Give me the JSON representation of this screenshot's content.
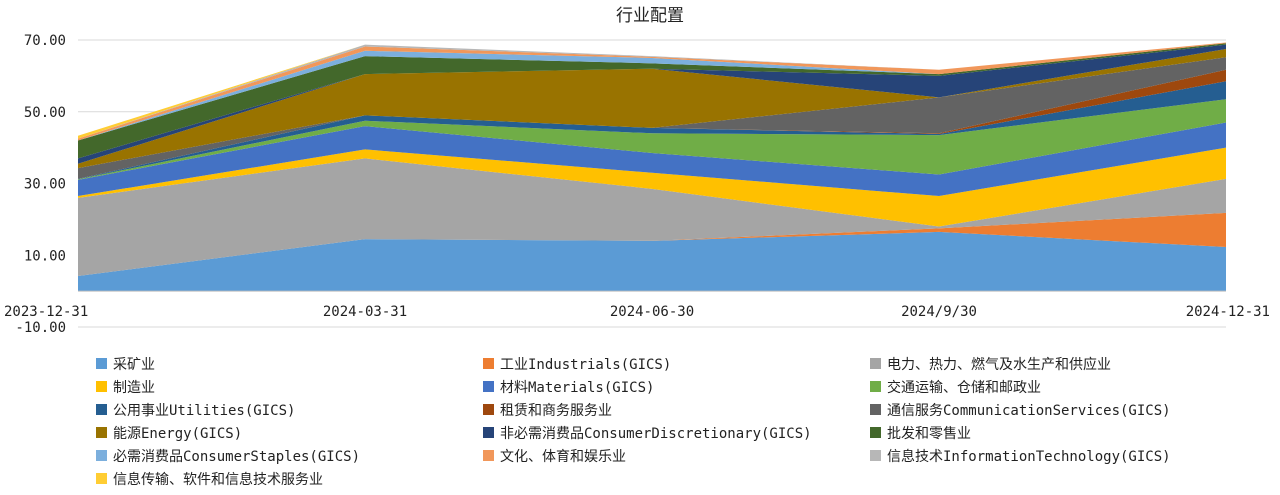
{
  "chart_data": {
    "type": "area",
    "stacked": true,
    "title": "行业配置",
    "xlabel": "",
    "ylabel": "",
    "ylim": [
      -10,
      70
    ],
    "yticks": [
      -10,
      10,
      30,
      50,
      70
    ],
    "ytick_labels": [
      "-10.00",
      "10.00",
      "30.00",
      "50.00",
      "70.00"
    ],
    "grid": true,
    "legend_position": "bottom",
    "categories": [
      "2023-12-31",
      "2024-03-31",
      "2024-06-30",
      "2024/9/30",
      "2024-12-31"
    ],
    "series": [
      {
        "name": "采矿业",
        "color": "#5b9bd5",
        "values": [
          4.2,
          14.5,
          14.0,
          16.5,
          12.3
        ]
      },
      {
        "name": "工业Industrials(GICS)",
        "color": "#ed7d31",
        "values": [
          0.0,
          0.0,
          0.0,
          1.0,
          9.5
        ]
      },
      {
        "name": "电力、热力、燃气及水生产和供应业",
        "color": "#a5a5a5",
        "values": [
          21.8,
          22.5,
          14.5,
          0.5,
          9.5
        ]
      },
      {
        "name": "制造业",
        "color": "#ffc000",
        "values": [
          0.5,
          2.5,
          4.5,
          8.5,
          8.7
        ]
      },
      {
        "name": "材料Materials(GICS)",
        "color": "#4472c4",
        "values": [
          4.5,
          6.5,
          5.5,
          6.0,
          7.0
        ]
      },
      {
        "name": "交通运输、仓储和邮政业",
        "color": "#70ad47",
        "values": [
          0.2,
          1.5,
          5.5,
          11.0,
          6.5
        ]
      },
      {
        "name": "公用事业Utilities(GICS)",
        "color": "#255e91",
        "values": [
          0.1,
          1.5,
          1.5,
          0.3,
          5.0
        ]
      },
      {
        "name": "租赁和商务服务业",
        "color": "#9e480e",
        "values": [
          0.0,
          0.0,
          0.0,
          0.2,
          3.2
        ]
      },
      {
        "name": "通信服务CommunicationServices(GICS)",
        "color": "#636363",
        "values": [
          3.0,
          0.0,
          0.0,
          10.0,
          3.5
        ]
      },
      {
        "name": "能源Energy(GICS)",
        "color": "#997300",
        "values": [
          1.2,
          11.5,
          16.5,
          0.0,
          2.3
        ]
      },
      {
        "name": "非必需消费品ConsumerDiscretionary(GICS)",
        "color": "#264478",
        "values": [
          1.5,
          0.0,
          0.0,
          6.0,
          1.2
        ]
      },
      {
        "name": "批发和零售业",
        "color": "#43682b",
        "values": [
          5.0,
          5.0,
          1.5,
          0.5,
          0.4
        ]
      },
      {
        "name": "必需消费品ConsumerStaples(GICS)",
        "color": "#7cafdd",
        "values": [
          0.0,
          1.5,
          1.5,
          0.0,
          0.0
        ]
      },
      {
        "name": "文化、体育和娱乐业",
        "color": "#f1975a",
        "values": [
          0.5,
          1.2,
          0.3,
          1.2,
          0.2
        ]
      },
      {
        "name": "信息技术InformationTechnology(GICS)",
        "color": "#b7b7b7",
        "values": [
          0.0,
          0.5,
          0.2,
          0.0,
          0.0
        ]
      },
      {
        "name": "信息传输、软件和信息技术服务业",
        "color": "#ffcd33",
        "values": [
          0.8,
          0.0,
          0.0,
          0.0,
          0.0
        ]
      }
    ]
  }
}
